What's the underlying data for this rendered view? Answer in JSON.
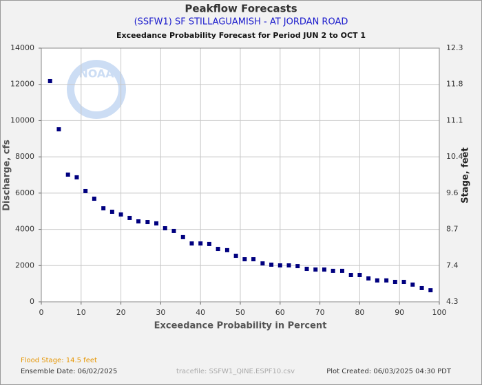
{
  "chart_data": {
    "type": "scatter",
    "title": "Peakflow Forecasts",
    "subtitle": "(SSFW1) SF STILLAGUAMISH - AT JORDAN ROAD",
    "period": "Exceedance Probability Forecast for Period JUN 2 to OCT 1",
    "xlabel": "Exceedance Probability in Percent",
    "ylabel": "Discharge, cfs",
    "y2label": "Stage, feet",
    "watermark": "NOAA",
    "color": "#00007f",
    "grid": true,
    "xlim": [
      0,
      100
    ],
    "xticks": [
      0,
      10,
      20,
      30,
      40,
      50,
      60,
      70,
      80,
      90,
      100
    ],
    "ylim": [
      0,
      14000
    ],
    "yticks": [
      0,
      2000,
      4000,
      6000,
      8000,
      10000,
      12000,
      14000
    ],
    "y2ticks": [
      4.3,
      7.4,
      8.7,
      9.6,
      10.4,
      11.1,
      11.8,
      12.3
    ],
    "x": [
      2.2,
      4.4,
      6.7,
      8.9,
      11.1,
      13.3,
      15.6,
      17.8,
      20.0,
      22.2,
      24.4,
      26.7,
      28.9,
      31.1,
      33.3,
      35.6,
      37.8,
      40.0,
      42.2,
      44.4,
      46.7,
      48.9,
      51.1,
      53.3,
      55.6,
      57.8,
      60.0,
      62.2,
      64.4,
      66.7,
      68.9,
      71.1,
      73.3,
      75.6,
      77.8,
      80.0,
      82.2,
      84.4,
      86.7,
      88.9,
      91.1,
      93.3,
      95.6,
      97.8
    ],
    "values": [
      12180,
      9520,
      7020,
      6870,
      6110,
      5690,
      5160,
      4970,
      4820,
      4630,
      4440,
      4400,
      4330,
      4060,
      3910,
      3570,
      3220,
      3220,
      3190,
      2920,
      2850,
      2540,
      2350,
      2350,
      2120,
      2050,
      2010,
      2010,
      1970,
      1820,
      1780,
      1780,
      1710,
      1710,
      1480,
      1480,
      1290,
      1180,
      1180,
      1100,
      1100,
      950,
      760,
      640
    ],
    "footer": {
      "flood_stage": "Flood Stage: 14.5 feet",
      "ensemble_date": "Ensemble Date: 06/02/2025",
      "tracefile": "tracefile: SSFW1_QINE.ESPF10.csv",
      "created": "Plot Created: 06/03/2025 04:30 PDT"
    }
  }
}
